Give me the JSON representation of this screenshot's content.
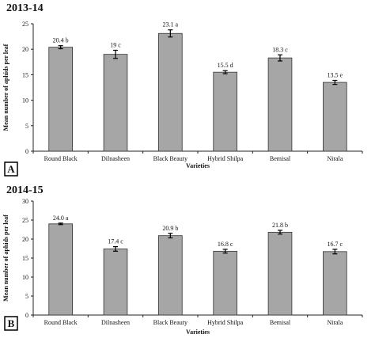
{
  "chart_data": [
    {
      "type": "bar",
      "title": "2013-14",
      "panel_label": "A",
      "xlabel": "Varieties",
      "ylabel": "Mean number of aphids per leaf",
      "categories": [
        "Round Black",
        "Dilnasheen",
        "Black Beauty",
        "Hybrid Shilpa",
        "Bemisal",
        "Nirala"
      ],
      "values": [
        20.4,
        19.0,
        23.1,
        15.5,
        18.3,
        13.5
      ],
      "errors": [
        0.3,
        0.8,
        0.7,
        0.3,
        0.6,
        0.4
      ],
      "data_labels": [
        "20.4  b",
        "19  c",
        "23.1  a",
        "15.5  d",
        "18.3  c",
        "13.5  e"
      ],
      "ylim": [
        0,
        25
      ],
      "yticks": [
        "0",
        "5",
        "10",
        "15",
        "20",
        "25"
      ],
      "bar_color": "#a6a6a6",
      "grid": false
    },
    {
      "type": "bar",
      "title": "2014-15",
      "panel_label": "B",
      "xlabel": "Varieties",
      "ylabel": "Mean number of aphids per leaf",
      "categories": [
        "Round Black",
        "Dilnasheen",
        "Black Beauty",
        "Hybrid Shilpa",
        "Bemisal",
        "Nirala"
      ],
      "values": [
        24.0,
        17.4,
        20.9,
        16.8,
        21.8,
        16.7
      ],
      "errors": [
        0.2,
        0.6,
        0.6,
        0.5,
        0.5,
        0.6
      ],
      "data_labels": [
        "24.0 a",
        "17.4 c",
        "20.9 b",
        "16.8 c",
        "21.8 b",
        "16.7 c"
      ],
      "ylim": [
        0,
        30
      ],
      "yticks": [
        "0",
        "5",
        "10",
        "15",
        "20",
        "25",
        "30"
      ],
      "bar_color": "#a6a6a6",
      "grid": false
    }
  ]
}
